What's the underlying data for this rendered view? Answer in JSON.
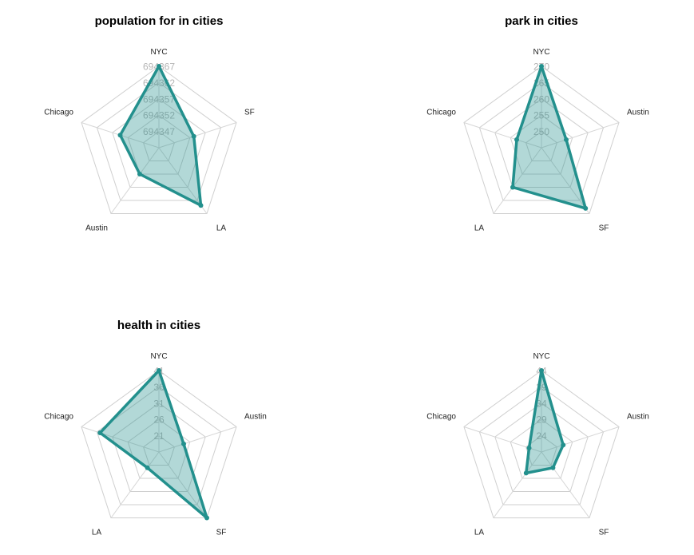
{
  "colors": {
    "series": "#23908d",
    "fill": "#23908d",
    "fill_opacity": 0.35,
    "grid": "#cfcfcf",
    "tick_text": "#b5b5b5"
  },
  "chart_data": [
    {
      "type": "radar",
      "title": "population for in cities",
      "axes": [
        "NYC",
        "SF",
        "LA",
        "Austin",
        "Chicago"
      ],
      "values": [
        694367,
        694345,
        694362,
        694343,
        694347
      ],
      "rlim": [
        694327,
        694367
      ],
      "ticks": [
        "694367",
        "694362",
        "694357",
        "694352",
        "694347"
      ],
      "grid": true
    },
    {
      "type": "radar",
      "title": "park in cities",
      "axes": [
        "NYC",
        "Austin",
        "SF",
        "LA",
        "Chicago"
      ],
      "values": [
        270,
        253,
        268,
        260,
        253
      ],
      "rlim": [
        245,
        270
      ],
      "ticks": [
        "270",
        "265",
        "260",
        "255",
        "250"
      ],
      "grid": true
    },
    {
      "type": "radar",
      "title": "health in cities",
      "axes": [
        "NYC",
        "Austin",
        "SF",
        "LA",
        "Chicago"
      ],
      "values": [
        41,
        24,
        41,
        22,
        35
      ],
      "rlim": [
        16,
        41
      ],
      "ticks": [
        "41",
        "36",
        "31",
        "26",
        "21"
      ],
      "grid": true
    },
    {
      "type": "radar",
      "title": "",
      "axes": [
        "NYC",
        "Austin",
        "SF",
        "LA",
        "Chicago"
      ],
      "values": [
        44,
        26,
        25,
        27,
        23
      ],
      "rlim": [
        19,
        44
      ],
      "ticks": [
        "44",
        "39",
        "34",
        "29",
        "24"
      ],
      "grid": true
    }
  ]
}
